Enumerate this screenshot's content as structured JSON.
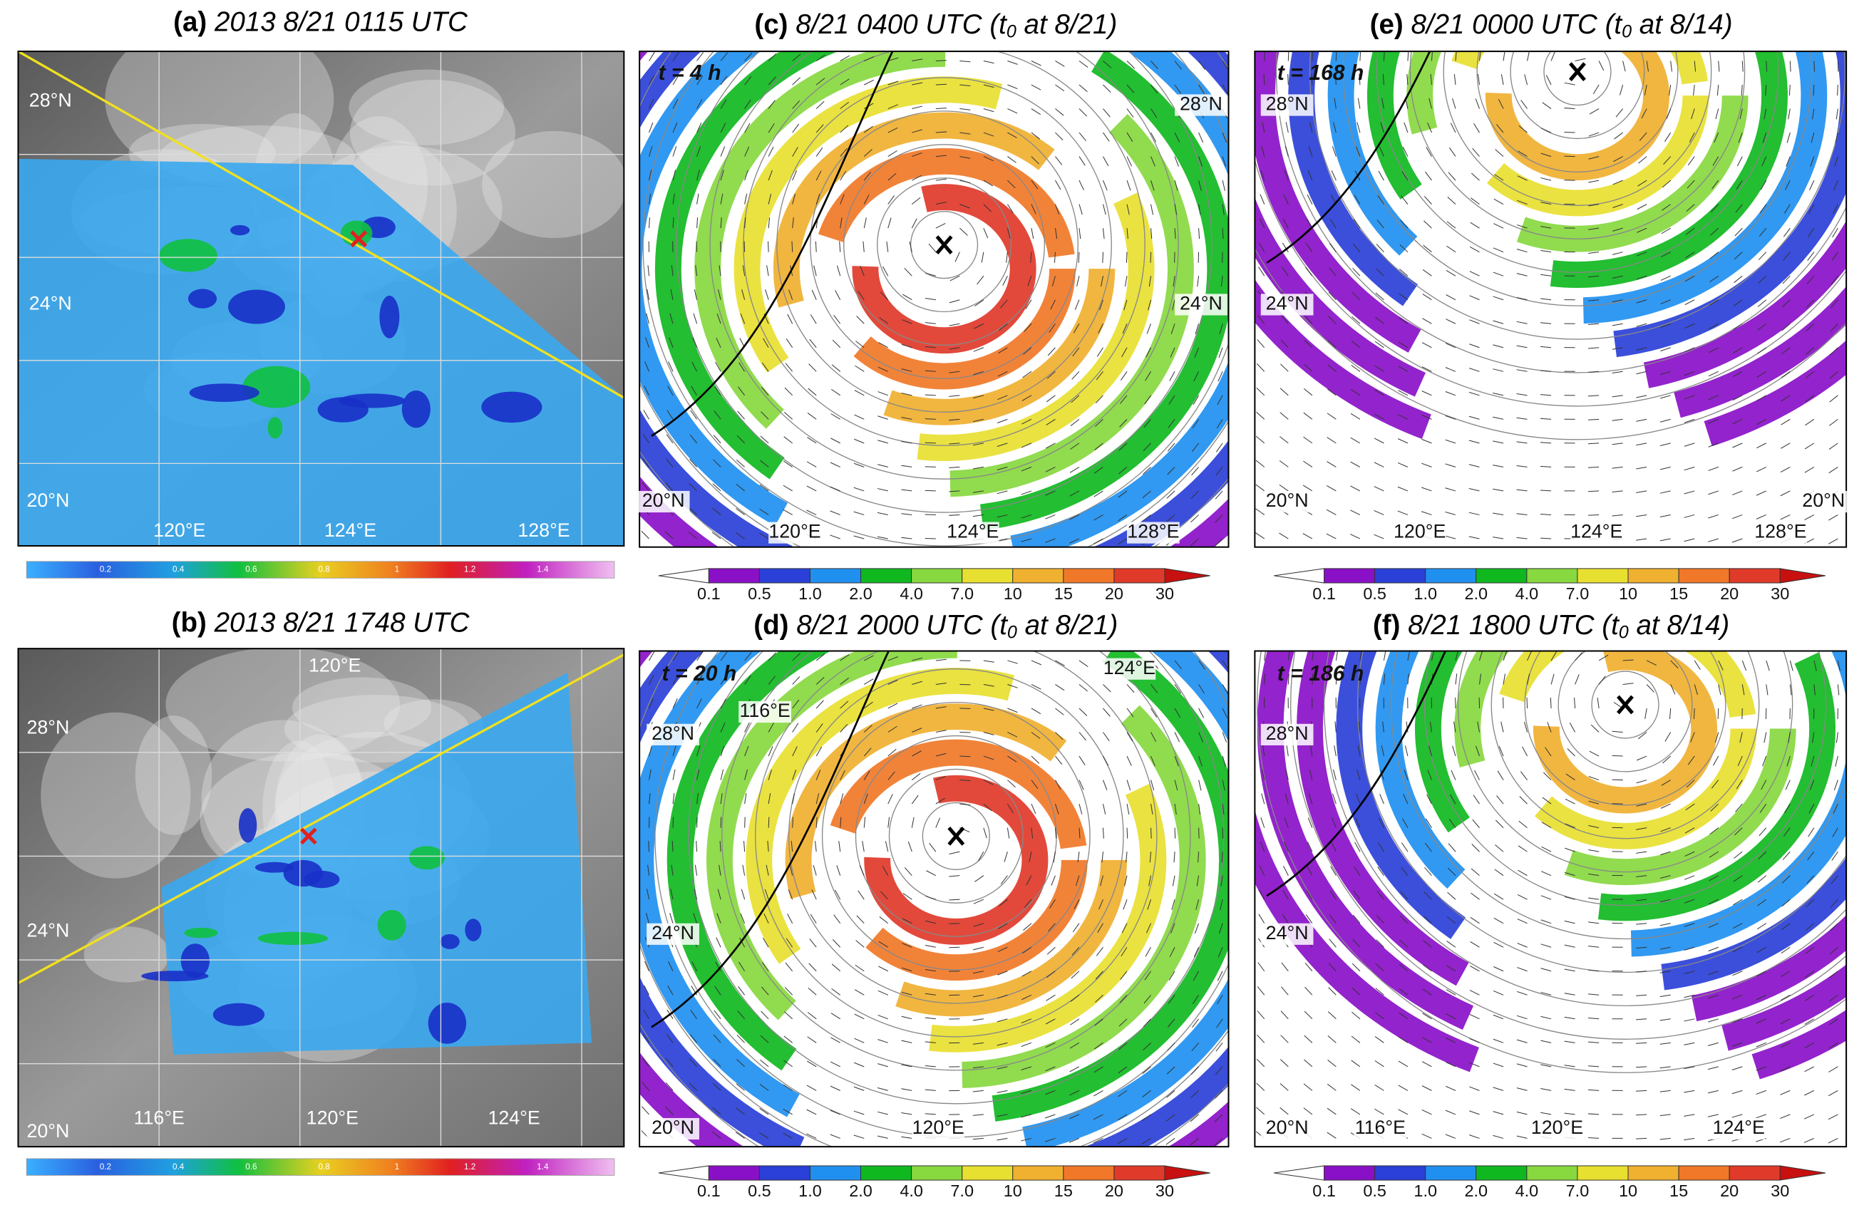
{
  "panels": [
    {
      "label": "(a)",
      "title": "2013 8/21 0115 UTC",
      "map_labels": [
        "28°N",
        "24°N",
        "20°N",
        "120°E",
        "124°E",
        "128°E"
      ],
      "colorbar": [
        "0.2",
        "0.4",
        "0.6",
        "0.8",
        "1",
        "1.2",
        "1.4"
      ]
    },
    {
      "label": "(b)",
      "title": "2013 8/21 1748 UTC",
      "map_labels": [
        "120°E",
        "28°N",
        "24°N",
        "20°N",
        "116°E",
        "120°E",
        "124°E"
      ],
      "colorbar": [
        "0.2",
        "0.4",
        "0.6",
        "0.8",
        "1",
        "1.2",
        "1.4"
      ]
    },
    {
      "label": "(c)",
      "title": "8/21 0400 UTC (t",
      "title_sub": "0",
      "title_end": " at 8/21)",
      "time": "t = 4 h",
      "map_labels": [
        "28°N",
        "24°N",
        "20°N",
        "120°E",
        "124°E",
        "128°E"
      ],
      "colorbar": [
        "0.1",
        "0.5",
        "1.0",
        "2.0",
        "4.0",
        "7.0",
        "10",
        "15",
        "20",
        "30"
      ]
    },
    {
      "label": "(d)",
      "title": "8/21 2000 UTC (t",
      "title_sub": "0",
      "title_end": " at 8/21)",
      "time": "t = 20 h",
      "map_labels": [
        "124°E",
        "116°E",
        "28°N",
        "24°N",
        "20°N",
        "120°E"
      ],
      "colorbar": [
        "0.1",
        "0.5",
        "1.0",
        "2.0",
        "4.0",
        "7.0",
        "10",
        "15",
        "20",
        "30"
      ]
    },
    {
      "label": "(e)",
      "title": "8/21 0000 UTC (t",
      "title_sub": "0",
      "title_end": " at 8/14)",
      "time": "t = 168 h",
      "map_labels": [
        "28°N",
        "24°N",
        "20°N",
        "120°E",
        "124°E",
        "128°E",
        "20°N"
      ],
      "colorbar": [
        "0.1",
        "0.5",
        "1.0",
        "2.0",
        "4.0",
        "7.0",
        "10",
        "15",
        "20",
        "30"
      ]
    },
    {
      "label": "(f)",
      "title": "8/21 1800 UTC (t",
      "title_sub": "0",
      "title_end": " at 8/14)",
      "time": "t = 186 h",
      "map_labels": [
        "28°N",
        "24°N",
        "20°N",
        "116°E",
        "120°E",
        "124°E"
      ],
      "colorbar": [
        "0.1",
        "0.5",
        "1.0",
        "2.0",
        "4.0",
        "7.0",
        "10",
        "15",
        "20",
        "30"
      ]
    }
  ]
}
